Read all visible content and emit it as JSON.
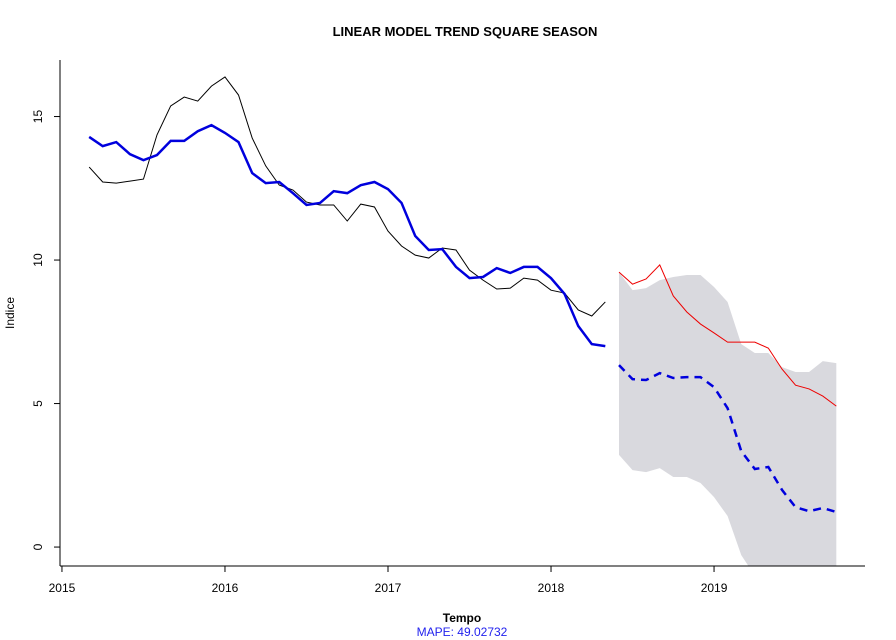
{
  "chart_data": {
    "type": "line",
    "title": "LINEAR MODEL TREND SQUARE SEASON",
    "xlabel": "Tempo",
    "ylabel": "Indice",
    "annotation": {
      "text": "MAPE:  49.02732",
      "color": "#2222ee"
    },
    "xlim": [
      2014.988,
      2019.926
    ],
    "ylim": [
      -0.66,
      16.97
    ],
    "xticks": [
      2015,
      2016,
      2017,
      2018,
      2019
    ],
    "yticks": [
      0,
      5,
      10,
      15
    ],
    "band": {
      "color": "#d9d9de",
      "x": [
        2018.417,
        2018.5,
        2018.583,
        2018.667,
        2018.75,
        2018.833,
        2018.917,
        2019,
        2019.083,
        2019.167,
        2019.25,
        2019.333,
        2019.417,
        2019.5,
        2019.583,
        2019.667,
        2019.75
      ],
      "upper": [
        9.58,
        8.95,
        9.02,
        9.3,
        9.41,
        9.48,
        9.48,
        9.06,
        8.54,
        7.07,
        6.76,
        6.76,
        6.27,
        6.1,
        6.1,
        6.48,
        6.41
      ],
      "lower": [
        3.21,
        2.68,
        2.61,
        2.75,
        2.44,
        2.44,
        2.23,
        1.74,
        1.08,
        -0.28,
        -1.0,
        -1.3,
        -1.5,
        -1.7,
        -1.8,
        -1.8,
        -1.9
      ]
    },
    "series": [
      {
        "color": "#000000",
        "width": 1,
        "dash": false,
        "x": [
          2015.167,
          2015.25,
          2015.333,
          2015.417,
          2015.5,
          2015.583,
          2015.667,
          2015.75,
          2015.833,
          2015.917,
          2016,
          2016.083,
          2016.167,
          2016.25,
          2016.333,
          2016.417,
          2016.5,
          2016.583,
          2016.667,
          2016.75,
          2016.833,
          2016.917,
          2017,
          2017.083,
          2017.167,
          2017.25,
          2017.333,
          2017.417,
          2017.5,
          2017.583,
          2017.667,
          2017.75,
          2017.833,
          2017.917,
          2018,
          2018.083,
          2018.167,
          2018.25,
          2018.333
        ],
        "values": [
          13.24,
          12.72,
          12.68,
          12.75,
          12.82,
          14.36,
          15.37,
          15.68,
          15.54,
          16.06,
          16.38,
          15.75,
          14.25,
          13.28,
          12.61,
          12.44,
          12.02,
          11.92,
          11.92,
          11.36,
          11.95,
          11.85,
          11.01,
          10.49,
          10.17,
          10.07,
          10.42,
          10.35,
          9.65,
          9.3,
          8.99,
          9.02,
          9.37,
          9.3,
          8.95,
          8.85,
          8.26,
          8.05,
          8.54
        ]
      },
      {
        "color": "#0000dd",
        "width": 2.5,
        "dash": false,
        "x": [
          2015.167,
          2015.25,
          2015.333,
          2015.417,
          2015.5,
          2015.583,
          2015.667,
          2015.75,
          2015.833,
          2015.917,
          2016,
          2016.083,
          2016.167,
          2016.25,
          2016.333,
          2016.417,
          2016.5,
          2016.583,
          2016.667,
          2016.75,
          2016.833,
          2016.917,
          2017,
          2017.083,
          2017.167,
          2017.25,
          2017.333,
          2017.417,
          2017.5,
          2017.583,
          2017.667,
          2017.75,
          2017.833,
          2017.917,
          2018,
          2018.083,
          2018.167,
          2018.25,
          2018.333
        ],
        "values": [
          14.29,
          13.97,
          14.11,
          13.69,
          13.48,
          13.66,
          14.15,
          14.15,
          14.49,
          14.7,
          14.43,
          14.11,
          13.03,
          12.68,
          12.72,
          12.33,
          11.92,
          11.99,
          12.4,
          12.33,
          12.61,
          12.72,
          12.47,
          11.99,
          10.84,
          10.35,
          10.38,
          9.76,
          9.37,
          9.41,
          9.72,
          9.55,
          9.76,
          9.76,
          9.37,
          8.82,
          7.7,
          7.07,
          7.0
        ]
      },
      {
        "color": "#ee0000",
        "width": 1,
        "dash": false,
        "x": [
          2018.417,
          2018.5,
          2018.583,
          2018.667,
          2018.75,
          2018.833,
          2018.917,
          2019,
          2019.083,
          2019.167,
          2019.25,
          2019.333,
          2019.417,
          2019.5,
          2019.583,
          2019.667,
          2019.75
        ],
        "values": [
          9.58,
          9.16,
          9.34,
          9.83,
          8.75,
          8.19,
          7.77,
          7.46,
          7.14,
          7.14,
          7.14,
          6.93,
          6.2,
          5.64,
          5.51,
          5.26,
          4.91
        ]
      },
      {
        "color": "#0000dd",
        "width": 2.5,
        "dash": true,
        "x": [
          2018.417,
          2018.5,
          2018.583,
          2018.667,
          2018.75,
          2018.833,
          2018.917,
          2019,
          2019.083,
          2019.167,
          2019.25,
          2019.333,
          2019.417,
          2019.5,
          2019.583,
          2019.667,
          2019.75
        ],
        "values": [
          6.34,
          5.85,
          5.82,
          6.06,
          5.89,
          5.92,
          5.92,
          5.57,
          4.84,
          3.34,
          2.72,
          2.79,
          1.99,
          1.39,
          1.25,
          1.36,
          1.22
        ]
      }
    ]
  }
}
